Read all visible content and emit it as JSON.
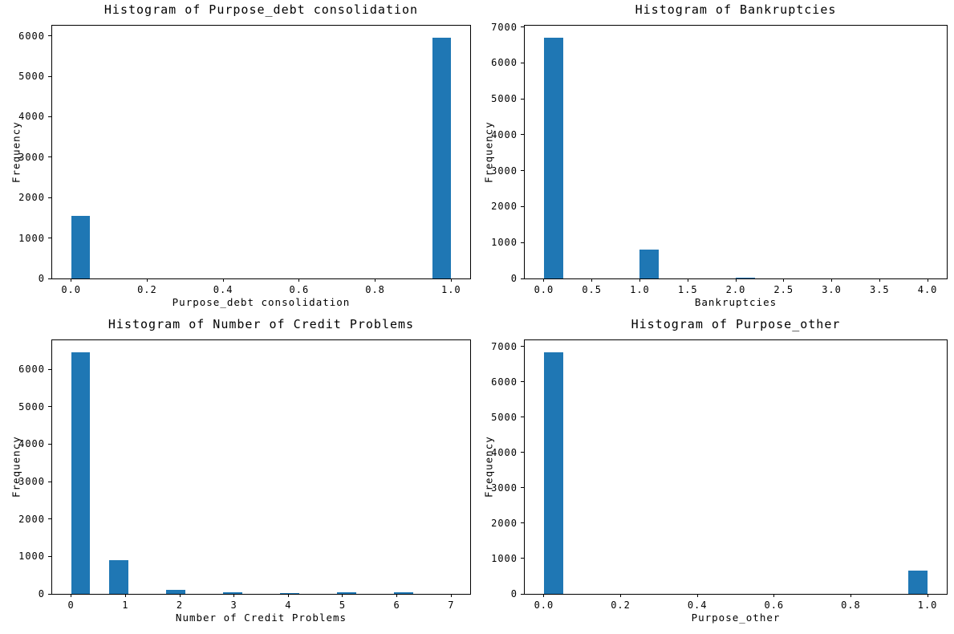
{
  "figure": {
    "background": "#ffffff",
    "bar_color": "#1f77b4",
    "axis_color": "#000000"
  },
  "chart_data": [
    {
      "type": "bar",
      "subtype": "histogram",
      "title": "Histogram of Purpose_debt consolidation",
      "xlabel": "Purpose_debt consolidation",
      "ylabel": "Frequency",
      "xlim": [
        -0.05,
        1.05
      ],
      "ylim": [
        0,
        6250
      ],
      "grid": false,
      "legend": "none",
      "xticks": [
        {
          "value": 0.0,
          "label": "0.0"
        },
        {
          "value": 0.2,
          "label": "0.2"
        },
        {
          "value": 0.4,
          "label": "0.4"
        },
        {
          "value": 0.6,
          "label": "0.6"
        },
        {
          "value": 0.8,
          "label": "0.8"
        },
        {
          "value": 1.0,
          "label": "1.0"
        }
      ],
      "yticks": [
        {
          "value": 0,
          "label": "0"
        },
        {
          "value": 1000,
          "label": "1000"
        },
        {
          "value": 2000,
          "label": "2000"
        },
        {
          "value": 3000,
          "label": "3000"
        },
        {
          "value": 4000,
          "label": "4000"
        },
        {
          "value": 5000,
          "label": "5000"
        },
        {
          "value": 6000,
          "label": "6000"
        }
      ],
      "bars": [
        {
          "x0": 0.0,
          "x1": 0.05,
          "count": 1550
        },
        {
          "x0": 0.95,
          "x1": 1.0,
          "count": 5950
        }
      ]
    },
    {
      "type": "bar",
      "subtype": "histogram",
      "title": "Histogram of Bankruptcies",
      "xlabel": "Bankruptcies",
      "ylabel": "Frequency",
      "xlim": [
        -0.2,
        4.2
      ],
      "ylim": [
        0,
        7035
      ],
      "grid": false,
      "legend": "none",
      "xticks": [
        {
          "value": 0.0,
          "label": "0.0"
        },
        {
          "value": 0.5,
          "label": "0.5"
        },
        {
          "value": 1.0,
          "label": "1.0"
        },
        {
          "value": 1.5,
          "label": "1.5"
        },
        {
          "value": 2.0,
          "label": "2.0"
        },
        {
          "value": 2.5,
          "label": "2.5"
        },
        {
          "value": 3.0,
          "label": "3.0"
        },
        {
          "value": 3.5,
          "label": "3.5"
        },
        {
          "value": 4.0,
          "label": "4.0"
        }
      ],
      "yticks": [
        {
          "value": 0,
          "label": "0"
        },
        {
          "value": 1000,
          "label": "1000"
        },
        {
          "value": 2000,
          "label": "2000"
        },
        {
          "value": 3000,
          "label": "3000"
        },
        {
          "value": 4000,
          "label": "4000"
        },
        {
          "value": 5000,
          "label": "5000"
        },
        {
          "value": 6000,
          "label": "6000"
        },
        {
          "value": 7000,
          "label": "7000"
        }
      ],
      "bars": [
        {
          "x0": 0.0,
          "x1": 0.2,
          "count": 6700
        },
        {
          "x0": 1.0,
          "x1": 1.2,
          "count": 800
        },
        {
          "x0": 2.0,
          "x1": 2.2,
          "count": 30
        }
      ]
    },
    {
      "type": "bar",
      "subtype": "histogram",
      "title": "Histogram of Number of Credit Problems",
      "xlabel": "Number of Credit Problems",
      "ylabel": "Frequency",
      "xlim": [
        -0.35,
        7.35
      ],
      "ylim": [
        0,
        6775
      ],
      "grid": false,
      "legend": "none",
      "xticks": [
        {
          "value": 0,
          "label": "0"
        },
        {
          "value": 1,
          "label": "1"
        },
        {
          "value": 2,
          "label": "2"
        },
        {
          "value": 3,
          "label": "3"
        },
        {
          "value": 4,
          "label": "4"
        },
        {
          "value": 5,
          "label": "5"
        },
        {
          "value": 6,
          "label": "6"
        },
        {
          "value": 7,
          "label": "7"
        }
      ],
      "yticks": [
        {
          "value": 0,
          "label": "0"
        },
        {
          "value": 1000,
          "label": "1000"
        },
        {
          "value": 2000,
          "label": "2000"
        },
        {
          "value": 3000,
          "label": "3000"
        },
        {
          "value": 4000,
          "label": "4000"
        },
        {
          "value": 5000,
          "label": "5000"
        },
        {
          "value": 6000,
          "label": "6000"
        }
      ],
      "bars": [
        {
          "x0": 0.0,
          "x1": 0.35,
          "count": 6450
        },
        {
          "x0": 0.7,
          "x1": 1.05,
          "count": 895
        },
        {
          "x0": 1.75,
          "x1": 2.1,
          "count": 100
        },
        {
          "x0": 2.8,
          "x1": 3.15,
          "count": 45
        },
        {
          "x0": 3.85,
          "x1": 4.2,
          "count": 30
        },
        {
          "x0": 4.9,
          "x1": 5.25,
          "count": 35
        },
        {
          "x0": 5.95,
          "x1": 6.3,
          "count": 35
        }
      ]
    },
    {
      "type": "bar",
      "subtype": "histogram",
      "title": "Histogram of Purpose_other",
      "xlabel": "Purpose_other",
      "ylabel": "Frequency",
      "xlim": [
        -0.05,
        1.05
      ],
      "ylim": [
        0,
        7180
      ],
      "grid": false,
      "legend": "none",
      "xticks": [
        {
          "value": 0.0,
          "label": "0.0"
        },
        {
          "value": 0.2,
          "label": "0.2"
        },
        {
          "value": 0.4,
          "label": "0.4"
        },
        {
          "value": 0.6,
          "label": "0.6"
        },
        {
          "value": 0.8,
          "label": "0.8"
        },
        {
          "value": 1.0,
          "label": "1.0"
        }
      ],
      "yticks": [
        {
          "value": 0,
          "label": "0"
        },
        {
          "value": 1000,
          "label": "1000"
        },
        {
          "value": 2000,
          "label": "2000"
        },
        {
          "value": 3000,
          "label": "3000"
        },
        {
          "value": 4000,
          "label": "4000"
        },
        {
          "value": 5000,
          "label": "5000"
        },
        {
          "value": 6000,
          "label": "6000"
        },
        {
          "value": 7000,
          "label": "7000"
        }
      ],
      "bars": [
        {
          "x0": 0.0,
          "x1": 0.05,
          "count": 6840
        },
        {
          "x0": 0.95,
          "x1": 1.0,
          "count": 660
        }
      ]
    }
  ]
}
